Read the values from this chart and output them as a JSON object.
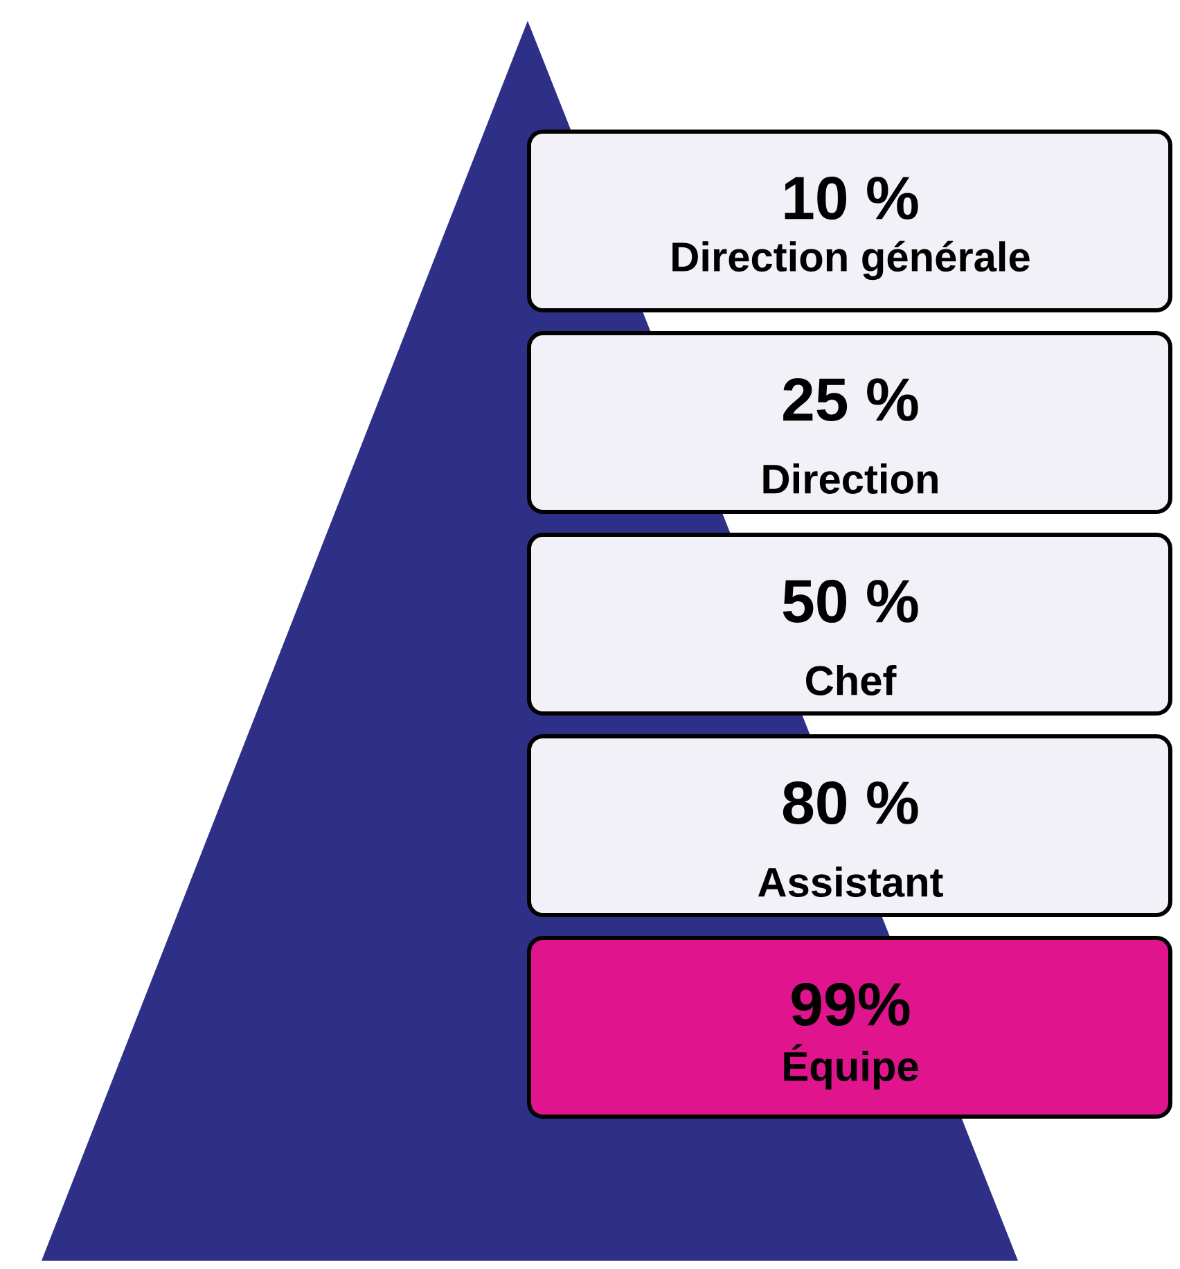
{
  "chart_data": {
    "type": "other",
    "categories": [
      "Direction générale",
      "Direction",
      "Chef",
      "Assistant",
      "Équipe"
    ],
    "values": [
      10,
      25,
      50,
      80,
      99
    ],
    "value_labels": [
      "10 %",
      "25 %",
      "50 %",
      "80 %",
      "99%"
    ],
    "colors": [
      "#f1f1f7",
      "#f1f1f7",
      "#f1f1f7",
      "#f1f1f7",
      "#e0158d"
    ]
  }
}
